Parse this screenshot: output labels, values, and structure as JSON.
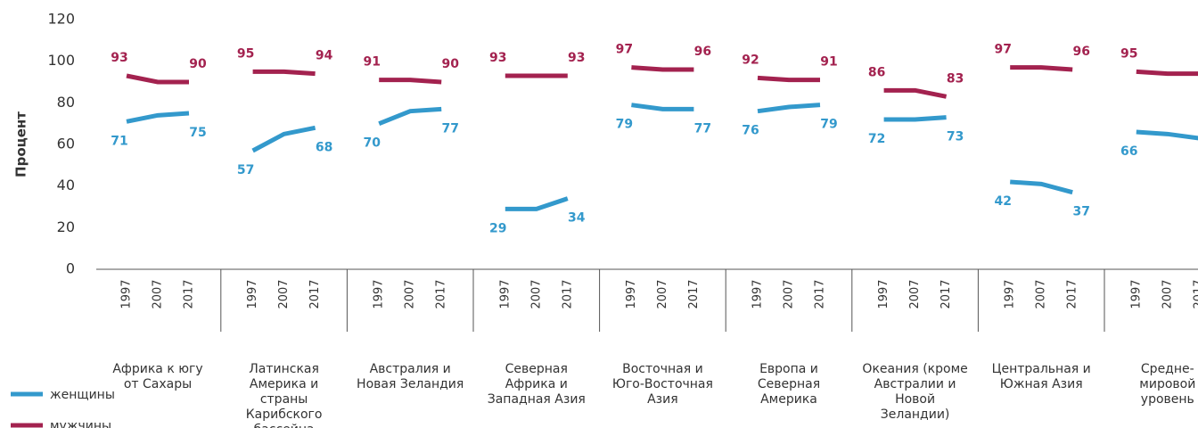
{
  "chart_data": {
    "type": "line",
    "ylabel": "Процент",
    "x": [
      "1997",
      "2007",
      "2017"
    ],
    "groups": [
      "Африка к югу от Сахары",
      "Латинская Америка и страны Карибского бассейна",
      "Австралия и Новая Зеландия",
      "Северная Африка и Западная Азия",
      "Восточная и Юго-Восточная Азия",
      "Европа и Северная Америка",
      "Океания (кроме Австралии и Новой Зеландии)",
      "Центральная и Южная Азия",
      "Средне-мировой уровень"
    ],
    "series": [
      {
        "name": "женщины",
        "color": "#3399cc",
        "values": [
          [
            71,
            74,
            75
          ],
          [
            57,
            65,
            68
          ],
          [
            70,
            76,
            77
          ],
          [
            29,
            29,
            34
          ],
          [
            79,
            77,
            77
          ],
          [
            76,
            78,
            79
          ],
          [
            72,
            72,
            73
          ],
          [
            42,
            41,
            37
          ],
          [
            66,
            65,
            63
          ]
        ]
      },
      {
        "name": "мужчины",
        "color": "#a3224f",
        "values": [
          [
            93,
            90,
            90
          ],
          [
            95,
            95,
            94
          ],
          [
            91,
            91,
            90
          ],
          [
            93,
            93,
            93
          ],
          [
            97,
            96,
            96
          ],
          [
            92,
            91,
            91
          ],
          [
            86,
            86,
            83
          ],
          [
            97,
            97,
            96
          ],
          [
            95,
            94,
            94
          ]
        ]
      }
    ],
    "ylim": [
      0,
      120
    ],
    "yticks": [
      0,
      20,
      40,
      60,
      80,
      100,
      120
    ]
  }
}
